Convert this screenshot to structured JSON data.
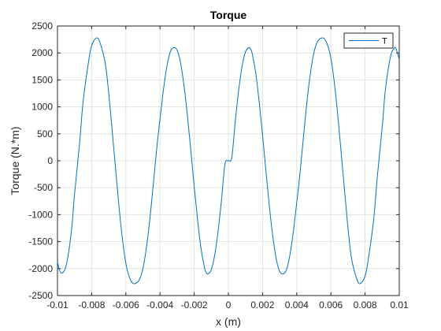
{
  "chart_data": {
    "type": "line",
    "title": "Torque",
    "xlabel": "x (m)",
    "ylabel": "Torque (N.*m)",
    "xlim": [
      -0.01,
      0.01
    ],
    "ylim": [
      -2500,
      2500
    ],
    "xticks": [
      -0.01,
      -0.008,
      -0.006,
      -0.004,
      -0.002,
      0,
      0.002,
      0.004,
      0.006,
      0.008,
      0.01
    ],
    "xtick_labels": [
      "-0.01",
      "-0.008",
      "-0.006",
      "-0.004",
      "-0.002",
      "0",
      "0.002",
      "0.004",
      "0.006",
      "0.008",
      "0.01"
    ],
    "yticks": [
      -2500,
      -2000,
      -1500,
      -1000,
      -500,
      0,
      500,
      1000,
      1500,
      2000,
      2500
    ],
    "ytick_labels": [
      "-2500",
      "-2000",
      "-1500",
      "-1000",
      "-500",
      "0",
      "500",
      "1000",
      "1500",
      "2000",
      "2500"
    ],
    "grid": true,
    "legend_position": "top-right",
    "series": [
      {
        "name": "T",
        "color": "#0072BD",
        "x": [
          -0.01,
          -0.0098,
          -0.0095,
          -0.0092,
          -0.009,
          -0.0087,
          -0.0085,
          -0.0082,
          -0.008,
          -0.0077,
          -0.0075,
          -0.0072,
          -0.007,
          -0.0068,
          -0.0066,
          -0.0064,
          -0.0062,
          -0.006,
          -0.0058,
          -0.0056,
          -0.0054,
          -0.0052,
          -0.005,
          -0.0048,
          -0.0046,
          -0.0044,
          -0.0042,
          -0.0041,
          -0.004,
          -0.0039,
          -0.0038,
          -0.0036,
          -0.0034,
          -0.0032,
          -0.003,
          -0.0028,
          -0.0026,
          -0.0024,
          -0.0022,
          -0.002,
          -0.0018,
          -0.0016,
          -0.0014,
          -0.0013,
          -0.0012,
          -0.001,
          -0.0008,
          -0.0006,
          -0.0004,
          -0.0002,
          0,
          0.0002,
          0.0004,
          0.0006,
          0.0008,
          0.001,
          0.0012,
          0.0013,
          0.0014,
          0.0016,
          0.0018,
          0.002,
          0.0022,
          0.0024,
          0.0026,
          0.0028,
          0.003,
          0.0032,
          0.0034,
          0.0036,
          0.0038,
          0.0039,
          0.004,
          0.0041,
          0.0042,
          0.0044,
          0.0046,
          0.0048,
          0.005,
          0.0052,
          0.0054,
          0.0056,
          0.0058,
          0.006,
          0.0062,
          0.0064,
          0.0066,
          0.0068,
          0.0069,
          0.007,
          0.0072,
          0.0075,
          0.0077,
          0.008,
          0.0082,
          0.0085,
          0.0087,
          0.009,
          0.0092,
          0.0095,
          0.0097,
          0.0098,
          0.01
        ],
        "y": [
          -1880,
          -2080,
          -1950,
          -1350,
          -620,
          350,
          1100,
          1800,
          2140,
          2280,
          2180,
          1800,
          1250,
          560,
          -150,
          -850,
          -1450,
          -1900,
          -2150,
          -2270,
          -2270,
          -2200,
          -2000,
          -1620,
          -1100,
          -460,
          200,
          500,
          780,
          1050,
          1320,
          1750,
          2020,
          2100,
          2050,
          1820,
          1400,
          850,
          200,
          -480,
          -1100,
          -1630,
          -1980,
          -2070,
          -2100,
          -2020,
          -1750,
          -1300,
          -720,
          -60,
          0,
          60,
          720,
          1300,
          1750,
          2020,
          2100,
          2070,
          1980,
          1630,
          1100,
          480,
          -200,
          -850,
          -1400,
          -1820,
          -2050,
          -2100,
          -2020,
          -1750,
          -1320,
          -1050,
          -780,
          -500,
          -200,
          460,
          1100,
          1620,
          2000,
          2200,
          2270,
          2270,
          2150,
          1900,
          1450,
          850,
          150,
          -560,
          -900,
          -1250,
          -1800,
          -2180,
          -2280,
          -2140,
          -1800,
          -1100,
          -350,
          620,
          1350,
          1950,
          2080,
          2090,
          1880
        ]
      }
    ]
  }
}
